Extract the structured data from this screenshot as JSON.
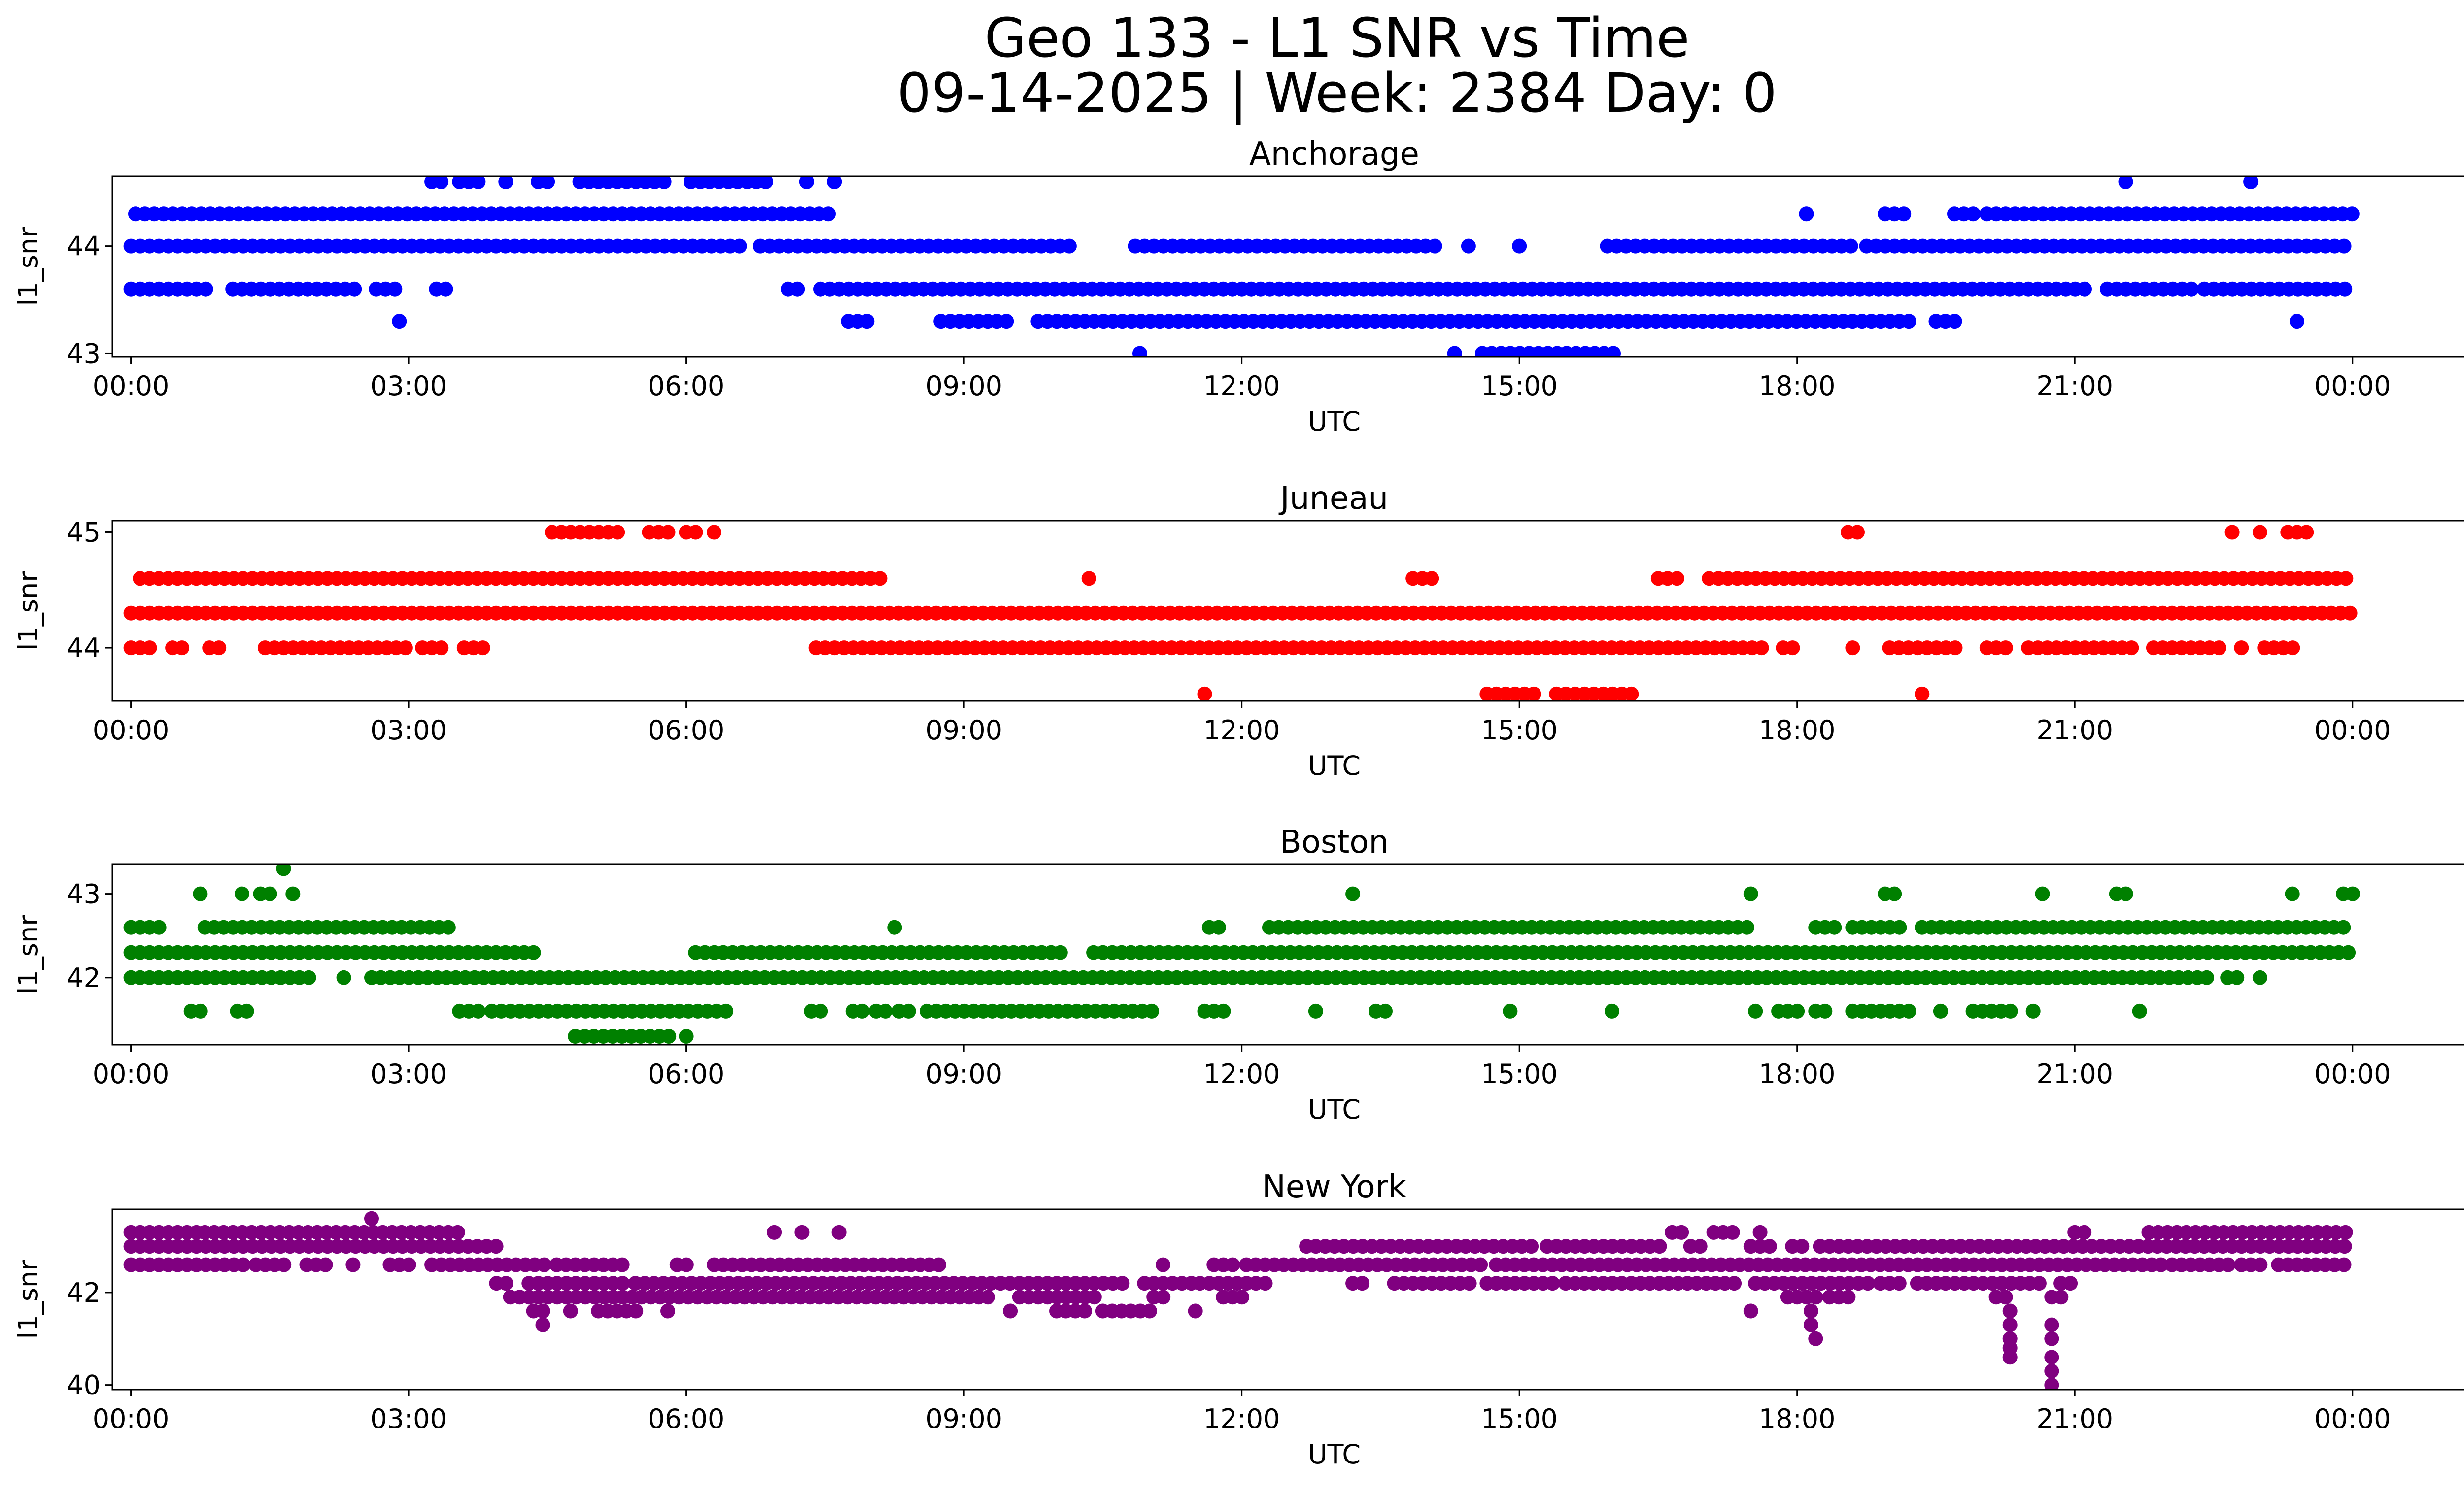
{
  "figure": {
    "title_line1": "Geo 133 - L1 SNR vs Time",
    "title_line2": "09-14-2025 | Week: 2384 Day: 0"
  },
  "chart_data": [
    {
      "type": "scatter",
      "title": "Anchorage",
      "xlabel": "UTC",
      "ylabel": "l1_snr",
      "color": "#0000ff",
      "xlim": [
        -0.2,
        26.2
      ],
      "ylim": [
        42.97,
        44.65
      ],
      "xticks": [
        0,
        3,
        6,
        9,
        12,
        15,
        18,
        21,
        24
      ],
      "xtick_labels": [
        "00:00",
        "03:00",
        "06:00",
        "09:00",
        "12:00",
        "15:00",
        "18:00",
        "21:00",
        "00:00"
      ],
      "yticks": [
        43,
        44
      ],
      "ytick_labels": [
        "43",
        "44"
      ],
      "bands": [
        {
          "y": 44.6,
          "segments": [
            [
              3.25,
              3.35
            ],
            [
              3.55,
              3.8
            ],
            [
              4.05,
              4.1
            ],
            [
              4.4,
              4.55
            ],
            [
              4.85,
              5.8
            ],
            [
              6.05,
              6.95
            ],
            [
              7.3,
              7.35
            ],
            [
              7.6,
              7.65
            ],
            [
              21.55,
              21.6
            ],
            [
              22.9,
              22.95
            ]
          ]
        },
        {
          "y": 44.3,
          "segments": [
            [
              0.05,
              7.6
            ],
            [
              18.1,
              18.15
            ],
            [
              18.95,
              19.15
            ],
            [
              19.7,
              19.95
            ],
            [
              20.05,
              24.0
            ]
          ]
        },
        {
          "y": 44.0,
          "segments": [
            [
              0.0,
              6.6
            ],
            [
              6.8,
              10.2
            ],
            [
              10.85,
              14.15
            ],
            [
              14.45,
              14.5
            ],
            [
              15.0,
              15.05
            ],
            [
              15.95,
              18.6
            ],
            [
              18.75,
              24.0
            ]
          ]
        },
        {
          "y": 43.6,
          "segments": [
            [
              0.0,
              0.9
            ],
            [
              1.1,
              2.5
            ],
            [
              2.65,
              2.9
            ],
            [
              3.3,
              3.4
            ],
            [
              7.1,
              7.25
            ],
            [
              7.45,
              21.2
            ],
            [
              21.35,
              22.3
            ],
            [
              22.4,
              24.0
            ]
          ]
        },
        {
          "y": 43.3,
          "segments": [
            [
              2.9,
              2.95
            ],
            [
              7.75,
              7.95
            ],
            [
              8.75,
              9.5
            ],
            [
              9.8,
              19.3
            ],
            [
              19.5,
              19.8
            ],
            [
              23.4,
              23.45
            ]
          ]
        },
        {
          "y": 43.0,
          "segments": [
            [
              10.9,
              10.95
            ],
            [
              14.3,
              14.35
            ],
            [
              14.6,
              16.05
            ]
          ]
        }
      ]
    },
    {
      "type": "scatter",
      "title": "Juneau",
      "xlabel": "UTC",
      "ylabel": "l1_snr",
      "color": "#ff0000",
      "xlim": [
        -0.2,
        26.2
      ],
      "ylim": [
        43.54,
        45.1
      ],
      "xticks": [
        0,
        3,
        6,
        9,
        12,
        15,
        18,
        21,
        24
      ],
      "xtick_labels": [
        "00:00",
        "03:00",
        "06:00",
        "09:00",
        "12:00",
        "15:00",
        "18:00",
        "21:00",
        "00:00"
      ],
      "yticks": [
        44,
        45
      ],
      "ytick_labels": [
        "44",
        "45"
      ],
      "bands": [
        {
          "y": 45.0,
          "segments": [
            [
              4.55,
              5.3
            ],
            [
              5.6,
              5.9
            ],
            [
              6.0,
              6.15
            ],
            [
              6.3,
              6.35
            ],
            [
              18.55,
              18.65
            ],
            [
              22.7,
              22.75
            ],
            [
              23.0,
              23.05
            ],
            [
              23.3,
              23.55
            ]
          ]
        },
        {
          "y": 44.6,
          "segments": [
            [
              0.1,
              8.1
            ],
            [
              10.35,
              10.4
            ],
            [
              13.85,
              14.1
            ],
            [
              16.5,
              16.8
            ],
            [
              17.05,
              24.0
            ]
          ]
        },
        {
          "y": 44.3,
          "segments": [
            [
              0.0,
              24.0
            ]
          ]
        },
        {
          "y": 44.0,
          "segments": [
            [
              0.0,
              0.3
            ],
            [
              0.45,
              0.6
            ],
            [
              0.85,
              1.0
            ],
            [
              1.45,
              3.05
            ],
            [
              3.15,
              3.35
            ],
            [
              3.6,
              3.8
            ],
            [
              7.4,
              17.7
            ],
            [
              17.85,
              18.0
            ],
            [
              18.6,
              18.65
            ],
            [
              19.0,
              19.8
            ],
            [
              20.05,
              20.3
            ],
            [
              20.5,
              21.7
            ],
            [
              21.85,
              22.6
            ],
            [
              22.8,
              22.85
            ],
            [
              23.05,
              23.4
            ]
          ]
        },
        {
          "y": 43.6,
          "segments": [
            [
              11.6,
              11.65
            ],
            [
              14.65,
              15.2
            ],
            [
              15.4,
              16.25
            ],
            [
              19.35,
              19.4
            ]
          ]
        }
      ]
    },
    {
      "type": "scatter",
      "title": "Boston",
      "xlabel": "UTC",
      "ylabel": "l1_snr",
      "color": "#008000",
      "xlim": [
        -0.2,
        26.2
      ],
      "ylim": [
        41.2,
        43.35
      ],
      "xticks": [
        0,
        3,
        6,
        9,
        12,
        15,
        18,
        21,
        24
      ],
      "xtick_labels": [
        "00:00",
        "03:00",
        "06:00",
        "09:00",
        "12:00",
        "15:00",
        "18:00",
        "21:00",
        "00:00"
      ],
      "yticks": [
        42,
        43
      ],
      "ytick_labels": [
        "42",
        "43"
      ],
      "bands": [
        {
          "y": 43.3,
          "segments": [
            [
              1.65,
              1.7
            ]
          ]
        },
        {
          "y": 43.0,
          "segments": [
            [
              0.75,
              0.8
            ],
            [
              1.2,
              1.25
            ],
            [
              1.4,
              1.55
            ],
            [
              1.75,
              1.8
            ],
            [
              13.2,
              13.25
            ],
            [
              17.5,
              17.55
            ],
            [
              18.95,
              19.05
            ],
            [
              20.65,
              20.7
            ],
            [
              21.45,
              21.55
            ],
            [
              23.35,
              23.4
            ],
            [
              23.9,
              24.0
            ]
          ]
        },
        {
          "y": 42.6,
          "segments": [
            [
              0.0,
              0.4
            ],
            [
              0.8,
              3.5
            ],
            [
              8.25,
              8.3
            ],
            [
              11.65,
              11.8
            ],
            [
              12.3,
              17.5
            ],
            [
              18.2,
              18.45
            ],
            [
              18.6,
              19.2
            ],
            [
              19.35,
              24.0
            ]
          ]
        },
        {
          "y": 42.3,
          "segments": [
            [
              0.0,
              4.35
            ],
            [
              6.1,
              6.35
            ],
            [
              6.4,
              10.05
            ],
            [
              10.4,
              24.0
            ]
          ]
        },
        {
          "y": 42.0,
          "segments": [
            [
              0.0,
              2.0
            ],
            [
              2.3,
              2.35
            ],
            [
              2.6,
              22.5
            ],
            [
              22.65,
              22.8
            ],
            [
              23.0,
              23.05
            ]
          ]
        },
        {
          "y": 41.6,
          "segments": [
            [
              0.65,
              0.8
            ],
            [
              1.15,
              1.25
            ],
            [
              3.55,
              3.85
            ],
            [
              3.9,
              6.5
            ],
            [
              7.35,
              7.45
            ],
            [
              7.8,
              7.9
            ],
            [
              8.05,
              8.15
            ],
            [
              8.3,
              8.4
            ],
            [
              8.6,
              11.1
            ],
            [
              11.6,
              11.9
            ],
            [
              12.8,
              12.85
            ],
            [
              13.45,
              13.6
            ],
            [
              14.9,
              14.95
            ],
            [
              16.0,
              16.05
            ],
            [
              17.55,
              17.6
            ],
            [
              17.8,
              18.1
            ],
            [
              18.2,
              18.3
            ],
            [
              18.6,
              19.3
            ],
            [
              19.55,
              19.6
            ],
            [
              19.9,
              20.4
            ],
            [
              20.55,
              20.6
            ],
            [
              21.7,
              21.75
            ]
          ]
        },
        {
          "y": 41.3,
          "segments": [
            [
              4.8,
              5.85
            ],
            [
              6.0,
              6.05
            ]
          ]
        }
      ]
    },
    {
      "type": "scatter",
      "title": "New York",
      "xlabel": "UTC",
      "ylabel": "l1_snr",
      "color": "#800080",
      "xlim": [
        -0.2,
        26.2
      ],
      "ylim": [
        39.9,
        43.8
      ],
      "xticks": [
        0,
        3,
        6,
        9,
        12,
        15,
        18,
        21,
        24
      ],
      "xtick_labels": [
        "00:00",
        "03:00",
        "06:00",
        "09:00",
        "12:00",
        "15:00",
        "18:00",
        "21:00",
        "00:00"
      ],
      "yticks": [
        40,
        42
      ],
      "ytick_labels": [
        "40",
        "42"
      ],
      "bands": [
        {
          "y": 43.6,
          "segments": [
            [
              2.6,
              2.65
            ]
          ]
        },
        {
          "y": 43.3,
          "segments": [
            [
              0.0,
              0.75
            ],
            [
              0.8,
              3.6
            ],
            [
              6.95,
              7.0
            ],
            [
              7.25,
              7.3
            ],
            [
              7.65,
              7.7
            ],
            [
              16.65,
              16.8
            ],
            [
              17.1,
              17.35
            ],
            [
              17.6,
              17.65
            ],
            [
              21.0,
              21.1
            ],
            [
              21.8,
              24.0
            ]
          ]
        },
        {
          "y": 43.0,
          "segments": [
            [
              0.0,
              4.0
            ],
            [
              12.7,
              15.2
            ],
            [
              15.3,
              16.6
            ],
            [
              16.85,
              17.0
            ],
            [
              17.5,
              17.7
            ],
            [
              17.95,
              18.05
            ],
            [
              18.25,
              24.0
            ]
          ]
        },
        {
          "y": 42.6,
          "segments": [
            [
              0.0,
              1.25
            ],
            [
              1.35,
              1.75
            ],
            [
              1.9,
              2.1
            ],
            [
              2.4,
              2.45
            ],
            [
              2.8,
              3.1
            ],
            [
              3.25,
              4.55
            ],
            [
              4.6,
              5.4
            ],
            [
              5.9,
              6.0
            ],
            [
              6.3,
              8.8
            ],
            [
              11.15,
              11.2
            ],
            [
              11.7,
              12.0
            ],
            [
              12.05,
              14.6
            ],
            [
              14.75,
              22.0
            ],
            [
              22.05,
              22.7
            ],
            [
              22.8,
              23.05
            ],
            [
              23.2,
              24.0
            ]
          ]
        },
        {
          "y": 42.2,
          "segments": [
            [
              3.95,
              4.05
            ],
            [
              4.3,
              5.4
            ],
            [
              5.45,
              10.8
            ],
            [
              10.95,
              11.5
            ],
            [
              11.55,
              11.8
            ],
            [
              11.85,
              12.3
            ],
            [
              13.2,
              13.3
            ],
            [
              13.65,
              14.5
            ],
            [
              14.65,
              15.4
            ],
            [
              15.5,
              17.4
            ],
            [
              17.55,
              18.8
            ],
            [
              18.9,
              19.2
            ],
            [
              19.3,
              20.7
            ],
            [
              20.85,
              21.0
            ]
          ]
        },
        {
          "y": 41.9,
          "segments": [
            [
              4.1,
              9.3
            ],
            [
              9.6,
              10.5
            ],
            [
              11.05,
              11.2
            ],
            [
              11.8,
              12.1
            ],
            [
              17.9,
              18.3
            ],
            [
              18.35,
              18.65
            ],
            [
              20.15,
              20.3
            ],
            [
              20.75,
              20.85
            ]
          ]
        },
        {
          "y": 41.6,
          "segments": [
            [
              4.35,
              4.45
            ],
            [
              4.75,
              4.8
            ],
            [
              5.05,
              5.5
            ],
            [
              5.8,
              5.85
            ],
            [
              9.5,
              9.55
            ],
            [
              10.0,
              10.35
            ],
            [
              10.5,
              11.1
            ],
            [
              11.5,
              11.55
            ],
            [
              17.5,
              17.55
            ],
            [
              18.15,
              18.2
            ],
            [
              20.3,
              20.35
            ]
          ]
        },
        {
          "y": 41.3,
          "segments": [
            [
              4.45,
              4.5
            ],
            [
              18.15,
              18.2
            ],
            [
              20.3,
              20.35
            ],
            [
              20.75,
              20.8
            ]
          ]
        },
        {
          "y": 41.0,
          "segments": [
            [
              18.2,
              18.25
            ],
            [
              20.3,
              20.35
            ],
            [
              20.75,
              20.8
            ]
          ]
        },
        {
          "y": 40.8,
          "segments": [
            [
              20.3,
              20.35
            ]
          ]
        },
        {
          "y": 40.6,
          "segments": [
            [
              20.3,
              20.35
            ],
            [
              20.75,
              20.8
            ]
          ]
        },
        {
          "y": 40.3,
          "segments": [
            [
              20.75,
              20.8
            ]
          ]
        },
        {
          "y": 40.0,
          "segments": [
            [
              20.75,
              20.8
            ]
          ]
        }
      ]
    }
  ]
}
